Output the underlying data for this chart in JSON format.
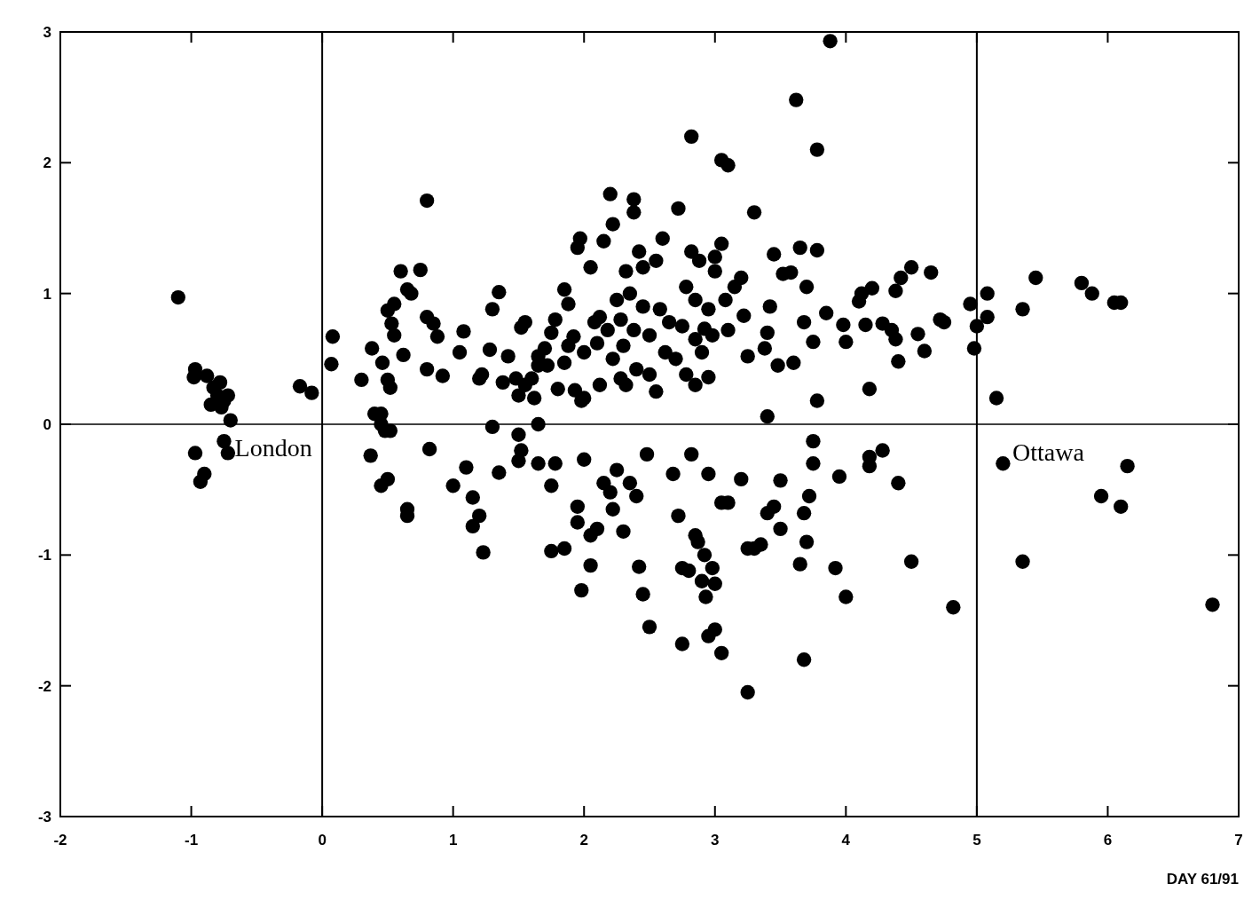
{
  "chart_data": {
    "type": "scatter",
    "xlabel": "DAY 61/91",
    "xlim": [
      -2,
      7
    ],
    "ylim": [
      -3,
      3
    ],
    "xticks": [
      -2,
      -1,
      0,
      1,
      2,
      3,
      4,
      5,
      6,
      7
    ],
    "yticks": [
      -3,
      -2,
      -1,
      0,
      1,
      2,
      3
    ],
    "grid": false,
    "marker": "circle",
    "ref_lines": [
      {
        "axis": "x",
        "value": 0
      },
      {
        "axis": "x",
        "value": 5
      },
      {
        "axis": "y",
        "value": 0
      }
    ],
    "annotations": [
      "London",
      "Ottawa"
    ],
    "series": [
      {
        "color": "#000000",
        "x": [
          -1.1,
          -0.97,
          -0.98,
          -0.88,
          -0.83,
          -0.78,
          -0.8,
          -0.75,
          -0.72,
          -0.85,
          -0.77,
          -0.7,
          -0.75,
          -0.72,
          -0.97,
          -0.9,
          -0.93,
          -0.17,
          -0.08,
          0.08,
          0.07,
          0.3,
          0.38,
          0.46,
          0.5,
          0.55,
          0.53,
          0.55,
          0.6,
          0.65,
          0.68,
          0.62,
          0.5,
          0.52,
          0.75,
          0.8,
          0.8,
          0.85,
          0.88,
          0.8,
          0.92,
          0.4,
          0.45,
          0.45,
          0.48,
          0.52,
          0.37,
          0.5,
          0.45,
          0.65,
          0.65,
          0.82,
          1.05,
          1.08,
          1.2,
          1.22,
          1.28,
          1.3,
          1.35,
          1.42,
          1.38,
          1.48,
          1.5,
          1.55,
          1.52,
          1.55,
          1.6,
          1.62,
          1.65,
          1.65,
          1.7,
          1.75,
          1.78,
          1.72,
          1.8,
          1.85,
          1.88,
          1.85,
          1.88,
          1.92,
          1.93,
          1.95,
          1.97,
          1.98,
          2.0,
          2.0,
          1.3,
          1.5,
          1.52,
          1.65,
          1.65,
          1.78,
          1.35,
          1.0,
          1.1,
          1.15,
          1.15,
          1.2,
          1.23,
          1.5,
          1.75,
          1.75,
          1.85,
          1.95,
          1.95,
          1.98,
          2.0,
          2.05,
          2.08,
          2.1,
          2.12,
          2.15,
          2.18,
          2.2,
          2.22,
          2.22,
          2.25,
          2.28,
          2.3,
          2.32,
          2.35,
          2.38,
          2.4,
          2.38,
          2.38,
          2.42,
          2.45,
          2.45,
          2.5,
          2.5,
          2.55,
          2.58,
          2.6,
          2.62,
          2.65,
          2.7,
          2.72,
          2.75,
          2.78,
          2.82,
          2.82,
          2.85,
          2.85,
          2.88,
          2.9,
          2.92,
          2.95,
          2.95,
          2.98,
          3.0,
          3.0,
          2.12,
          2.28,
          2.32,
          2.55,
          2.78,
          2.85,
          2.05,
          2.1,
          2.15,
          2.2,
          2.22,
          2.25,
          2.3,
          2.35,
          2.4,
          2.05,
          2.42,
          2.45,
          2.48,
          2.5,
          2.68,
          2.72,
          2.75,
          2.8,
          2.82,
          2.85,
          2.87,
          2.9,
          2.92,
          2.93,
          2.95,
          2.98,
          3.0,
          2.95,
          3.0,
          2.75,
          3.05,
          3.1,
          3.05,
          3.08,
          3.1,
          3.15,
          3.2,
          3.22,
          3.25,
          3.3,
          3.38,
          3.4,
          3.42,
          3.45,
          3.48,
          3.52,
          3.58,
          3.6,
          3.62,
          3.65,
          3.68,
          3.7,
          3.75,
          3.78,
          3.78,
          3.78,
          3.85,
          3.88,
          3.4,
          3.05,
          3.1,
          3.2,
          3.25,
          3.3,
          3.35,
          3.4,
          3.45,
          3.5,
          3.5,
          3.25,
          3.05,
          3.75,
          3.75,
          3.72,
          3.7,
          3.68,
          3.65,
          3.68,
          3.92,
          3.95,
          4.0,
          4.0,
          3.98,
          4.1,
          4.12,
          4.15,
          4.2,
          4.18,
          4.28,
          4.35,
          4.38,
          4.38,
          4.4,
          4.42,
          4.5,
          4.55,
          4.6,
          4.65,
          4.72,
          4.75,
          4.95,
          4.98,
          5.0,
          4.18,
          4.18,
          4.28,
          4.4,
          4.5,
          4.82,
          5.08,
          5.08,
          5.15,
          5.35,
          5.45,
          5.8,
          5.88,
          6.05,
          6.1,
          5.95,
          6.1,
          6.15,
          5.2,
          5.35,
          6.8
        ],
        "values": [
          0.97,
          0.42,
          0.36,
          0.37,
          0.28,
          0.32,
          0.22,
          0.18,
          0.22,
          0.15,
          0.13,
          0.03,
          -0.13,
          -0.22,
          -0.22,
          -0.38,
          -0.44,
          0.29,
          0.24,
          0.67,
          0.46,
          0.34,
          0.58,
          0.47,
          0.87,
          0.92,
          0.77,
          0.68,
          1.17,
          1.03,
          1.0,
          0.53,
          0.34,
          0.28,
          1.18,
          1.71,
          0.82,
          0.77,
          0.67,
          0.42,
          0.37,
          0.08,
          0.08,
          0.0,
          -0.05,
          -0.05,
          -0.24,
          -0.42,
          -0.47,
          -0.65,
          -0.7,
          -0.19,
          0.55,
          0.71,
          0.35,
          0.38,
          0.57,
          0.88,
          1.01,
          0.52,
          0.32,
          0.35,
          0.22,
          0.3,
          0.74,
          0.78,
          0.35,
          0.2,
          0.45,
          0.52,
          0.58,
          0.7,
          0.8,
          0.45,
          0.27,
          1.03,
          0.92,
          0.47,
          0.6,
          0.67,
          0.26,
          1.35,
          1.42,
          0.18,
          0.2,
          0.55,
          -0.02,
          -0.08,
          -0.2,
          0.0,
          -0.3,
          -0.3,
          -0.37,
          -0.47,
          -0.33,
          -0.56,
          -0.78,
          -0.7,
          -0.98,
          -0.28,
          -0.47,
          -0.97,
          -0.95,
          -0.63,
          -0.75,
          -1.27,
          -0.27,
          1.2,
          0.78,
          0.62,
          0.82,
          1.4,
          0.72,
          1.76,
          1.53,
          0.5,
          0.95,
          0.8,
          0.6,
          1.17,
          1.0,
          0.72,
          0.42,
          1.72,
          1.62,
          1.32,
          1.2,
          0.9,
          0.68,
          0.38,
          1.25,
          0.88,
          1.42,
          0.55,
          0.78,
          0.5,
          1.65,
          0.75,
          1.05,
          2.2,
          1.32,
          0.95,
          0.65,
          1.25,
          0.55,
          0.73,
          0.36,
          0.88,
          0.68,
          1.17,
          1.28,
          0.3,
          0.35,
          0.3,
          0.25,
          0.38,
          0.3,
          -0.85,
          -0.8,
          -0.45,
          -0.52,
          -0.65,
          -0.35,
          -0.82,
          -0.45,
          -0.55,
          -1.08,
          -1.09,
          -1.3,
          -0.23,
          -1.55,
          -0.38,
          -0.7,
          -1.1,
          -1.12,
          -0.23,
          -0.85,
          -0.9,
          -1.2,
          -1.0,
          -1.32,
          -0.38,
          -1.1,
          -1.22,
          -1.62,
          -1.57,
          -1.68,
          2.02,
          1.98,
          1.38,
          0.95,
          0.72,
          1.05,
          1.12,
          0.83,
          0.52,
          1.62,
          0.58,
          0.7,
          0.9,
          1.3,
          0.45,
          1.15,
          1.16,
          0.47,
          2.48,
          1.35,
          0.78,
          1.05,
          0.63,
          2.1,
          1.33,
          0.18,
          0.85,
          2.93,
          0.06,
          -0.6,
          -0.6,
          -0.42,
          -0.95,
          -0.95,
          -0.92,
          -0.68,
          -0.63,
          -0.43,
          -0.8,
          -2.05,
          -1.75,
          -0.13,
          -0.3,
          -0.55,
          -0.9,
          -0.68,
          -1.07,
          -1.8,
          -1.1,
          -0.4,
          -1.32,
          0.63,
          0.76,
          0.94,
          1.0,
          0.76,
          1.04,
          0.27,
          0.77,
          0.72,
          0.65,
          1.02,
          0.48,
          1.12,
          1.2,
          0.69,
          0.56,
          1.16,
          0.8,
          0.78,
          0.92,
          0.58,
          0.75,
          -0.25,
          -0.32,
          -0.2,
          -0.45,
          -1.05,
          -1.4,
          0.82,
          1.0,
          0.2,
          0.88,
          1.12,
          1.08,
          1.0,
          0.93,
          0.93,
          -0.55,
          -0.63,
          -0.32,
          -0.3,
          -1.05,
          -1.38
        ]
      }
    ]
  }
}
